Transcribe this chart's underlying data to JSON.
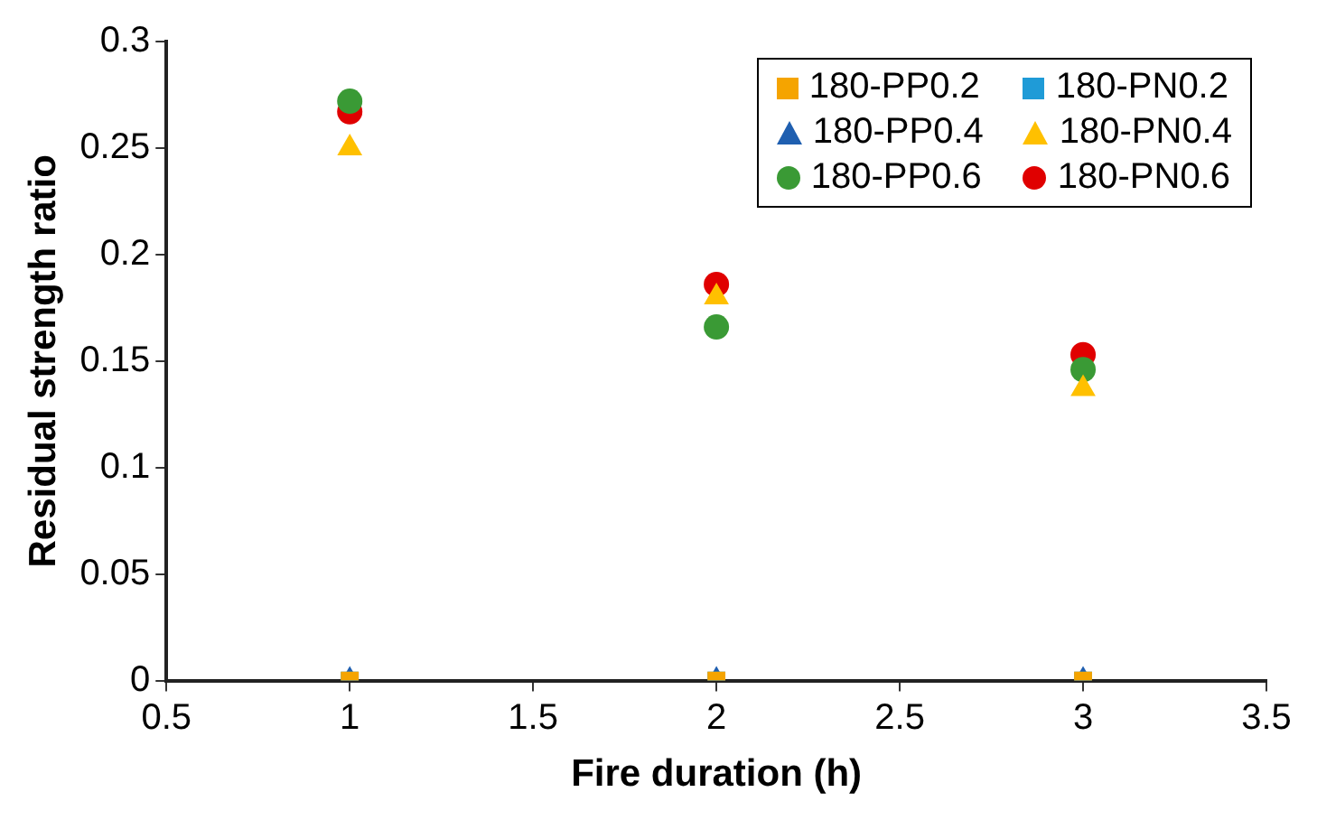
{
  "chart_data": {
    "type": "scatter",
    "xlabel": "Fire duration (h)",
    "ylabel": "Residual strength ratio",
    "x": [
      1,
      2,
      3
    ],
    "xlim": [
      0.5,
      3.5
    ],
    "xticks": [
      0.5,
      1,
      1.5,
      2,
      2.5,
      3,
      3.5
    ],
    "ylim": [
      0,
      0.3
    ],
    "yticks": [
      0,
      0.05,
      0.1,
      0.15,
      0.2,
      0.25,
      0.3
    ],
    "grid": false,
    "legend": "top right",
    "series": [
      {
        "name": "180-PP0.2",
        "color": "#f5a400",
        "marker": "square",
        "values": [
          0,
          0,
          0
        ]
      },
      {
        "name": "180-PN0.2",
        "color": "#1f9bd7",
        "marker": "square",
        "values": [
          0,
          0,
          0
        ]
      },
      {
        "name": "180-PP0.4",
        "color": "#1f5fb0",
        "marker": "triangle",
        "values": [
          0,
          0,
          0
        ]
      },
      {
        "name": "180-PN0.4",
        "color": "#ffc000",
        "marker": "triangle",
        "values": [
          0.25,
          0.18,
          0.137
        ]
      },
      {
        "name": "180-PP0.6",
        "color": "#3a9a35",
        "marker": "circle",
        "values": [
          0.272,
          0.166,
          0.146
        ]
      },
      {
        "name": "180-PN0.6",
        "color": "#e00000",
        "marker": "circle",
        "values": [
          0.267,
          0.186,
          0.153
        ]
      }
    ]
  }
}
